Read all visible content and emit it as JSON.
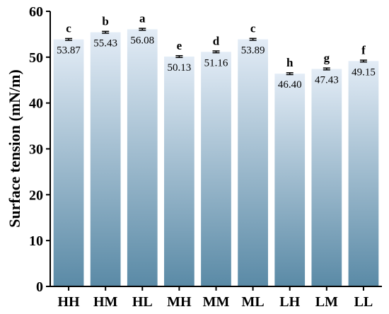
{
  "chart_data": {
    "type": "bar",
    "categories": [
      "HH",
      "HM",
      "HL",
      "MH",
      "MM",
      "ML",
      "LH",
      "LM",
      "LL"
    ],
    "values": [
      53.87,
      55.43,
      56.08,
      50.13,
      51.16,
      53.89,
      46.4,
      47.43,
      49.15
    ],
    "value_labels": [
      "53.87",
      "55.43",
      "56.08",
      "50.13",
      "51.16",
      "53.89",
      "46.40",
      "47.43",
      "49.15"
    ],
    "significance_letters": [
      "c",
      "b",
      "a",
      "e",
      "d",
      "c",
      "h",
      "g",
      "f"
    ],
    "error": [
      0.2,
      0.2,
      0.2,
      0.2,
      0.2,
      0.2,
      0.2,
      0.2,
      0.2
    ],
    "title": "",
    "xlabel": "",
    "ylabel": "Surface tension (mN/m)",
    "ylim": [
      0,
      60
    ],
    "yticks": [
      0,
      10,
      20,
      30,
      40,
      50,
      60
    ],
    "grid": false,
    "legend": "none",
    "bar_gradient": {
      "top": "#e3ecf6",
      "bottom": "#5a8aa6"
    },
    "error_color": "#000000"
  }
}
